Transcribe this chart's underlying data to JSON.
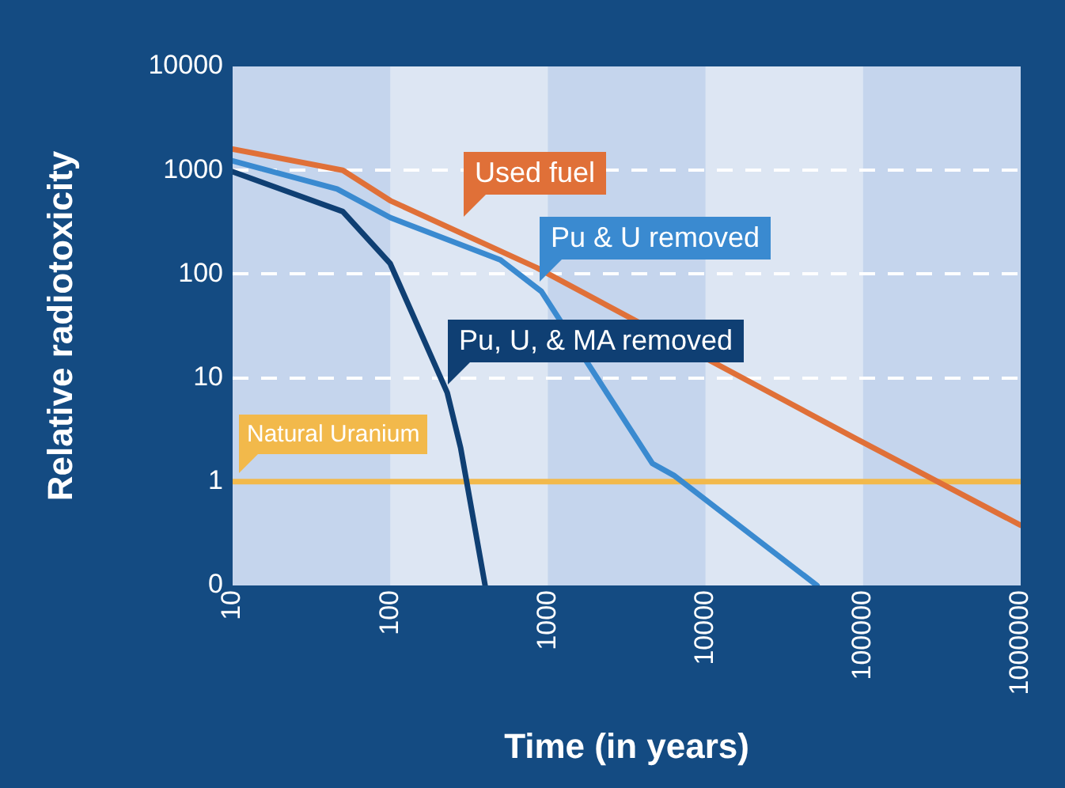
{
  "chart_data": {
    "type": "line",
    "xlabel": "Time (in years)",
    "ylabel": "Relative radiotoxicity",
    "log": "xy",
    "xlim": [
      10,
      1000000
    ],
    "xticks": [
      10,
      100,
      1000,
      10000,
      100000,
      1000000
    ],
    "ylim": [
      0.1,
      10000
    ],
    "yticks": [
      {
        "value": 0.1,
        "label": "0"
      },
      1,
      10,
      100,
      1000,
      10000
    ],
    "grid": "y",
    "marker": "none",
    "bands": [
      {
        "axis": "x",
        "from": 10,
        "to": 100,
        "color": "#c5d5ed"
      },
      {
        "axis": "x",
        "from": 1000,
        "to": 10000,
        "color": "#c5d5ed"
      },
      {
        "axis": "x",
        "from": 100000,
        "to": 1000000,
        "color": "#c5d5ed"
      }
    ],
    "series": [
      {
        "name": "Used fuel",
        "color": "#e07038",
        "x": [
          10,
          50,
          100,
          850,
          90000,
          1000000
        ],
        "values": [
          1600,
          1000,
          510,
          115,
          2.6,
          0.38
        ]
      },
      {
        "name": "Pu & U removed",
        "color": "#3a8ad0",
        "x": [
          10,
          46,
          100,
          500,
          910,
          4600,
          6300,
          51000
        ],
        "values": [
          1230,
          660,
          350,
          137,
          68,
          1.5,
          1.15,
          0.1
        ]
      },
      {
        "name": "Pu, U, & MA removed",
        "color": "#0f3f73",
        "x": [
          10,
          50,
          100,
          230,
          280,
          400
        ],
        "values": [
          970,
          400,
          126,
          7.2,
          2.1,
          0.1
        ]
      },
      {
        "name": "Natural Uranium",
        "color": "#f2b94b",
        "x": [
          10,
          1000000
        ],
        "values": [
          1,
          1
        ]
      }
    ]
  }
}
